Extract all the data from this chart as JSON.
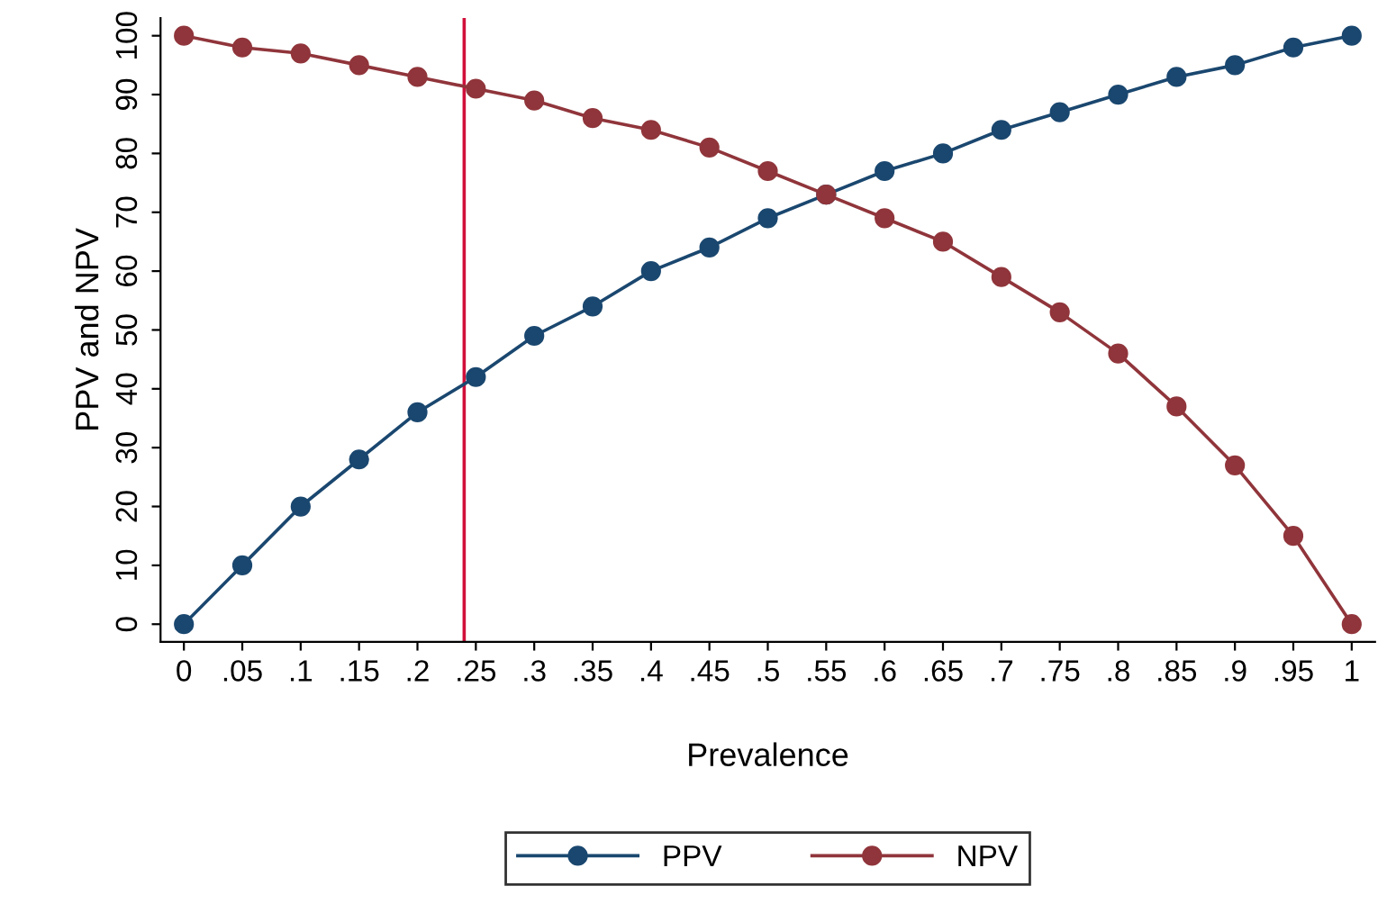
{
  "chart_data": {
    "type": "line",
    "xlabel": "Prevalence",
    "ylabel": "PPV and NPV",
    "x": [
      0,
      0.05,
      0.1,
      0.15,
      0.2,
      0.25,
      0.3,
      0.35,
      0.4,
      0.45,
      0.5,
      0.55,
      0.6,
      0.65,
      0.7,
      0.75,
      0.8,
      0.85,
      0.9,
      0.95,
      1
    ],
    "series": [
      {
        "name": "PPV",
        "color": "#1a476f",
        "values": [
          0,
          10,
          20,
          28,
          36,
          42,
          49,
          54,
          60,
          64,
          69,
          73,
          77,
          80,
          84,
          87,
          90,
          93,
          95,
          98,
          100
        ]
      },
      {
        "name": "NPV",
        "color": "#90353b",
        "values": [
          100,
          98,
          97,
          95,
          93,
          91,
          89,
          86,
          84,
          81,
          77,
          73,
          69,
          65,
          59,
          53,
          46,
          37,
          27,
          15,
          0
        ]
      }
    ],
    "xlim": [
      -0.02,
      1.02
    ],
    "ylim": [
      -3,
      103
    ],
    "xticks": [
      0,
      {
        "value": 0.05,
        "label": ".05"
      },
      {
        "value": 0.1,
        "label": ".1"
      },
      {
        "value": 0.15,
        "label": ".15"
      },
      {
        "value": 0.2,
        "label": ".2"
      },
      {
        "value": 0.25,
        "label": ".25"
      },
      {
        "value": 0.3,
        "label": ".3"
      },
      {
        "value": 0.35,
        "label": ".35"
      },
      {
        "value": 0.4,
        "label": ".4"
      },
      {
        "value": 0.45,
        "label": ".45"
      },
      {
        "value": 0.5,
        "label": ".5"
      },
      {
        "value": 0.55,
        "label": ".55"
      },
      {
        "value": 0.6,
        "label": ".6"
      },
      {
        "value": 0.65,
        "label": ".65"
      },
      {
        "value": 0.7,
        "label": ".7"
      },
      {
        "value": 0.75,
        "label": ".75"
      },
      {
        "value": 0.8,
        "label": ".8"
      },
      {
        "value": 0.85,
        "label": ".85"
      },
      {
        "value": 0.9,
        "label": ".9"
      },
      {
        "value": 0.95,
        "label": ".95"
      },
      1
    ],
    "yticks": [
      0,
      10,
      20,
      30,
      40,
      50,
      60,
      70,
      80,
      90,
      100
    ],
    "ref_lines": [
      {
        "axis": "x",
        "value": 0.24,
        "color": "#d0103a"
      }
    ],
    "marker": "circle",
    "line_style": "solid",
    "grid": false,
    "legend": "bottom"
  }
}
